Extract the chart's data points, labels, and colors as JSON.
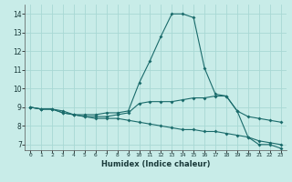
{
  "xlabel": "Humidex (Indice chaleur)",
  "ylabel": "",
  "background_color": "#c8ece8",
  "grid_color": "#a8d8d4",
  "line_color": "#1a6b6b",
  "xlim": [
    -0.5,
    23.5
  ],
  "ylim": [
    6.7,
    14.5
  ],
  "yticks": [
    7,
    8,
    9,
    10,
    11,
    12,
    13,
    14
  ],
  "xticks": [
    0,
    1,
    2,
    3,
    4,
    5,
    6,
    7,
    8,
    9,
    10,
    11,
    12,
    13,
    14,
    15,
    16,
    17,
    18,
    19,
    20,
    21,
    22,
    23
  ],
  "line1_x": [
    0,
    1,
    2,
    3,
    4,
    5,
    6,
    7,
    8,
    9,
    10,
    11,
    12,
    13,
    14,
    15,
    16,
    17,
    18,
    19,
    20,
    21,
    22,
    23
  ],
  "line1_y": [
    9.0,
    8.9,
    8.9,
    8.7,
    8.6,
    8.6,
    8.6,
    8.7,
    8.7,
    8.8,
    10.3,
    11.5,
    12.8,
    14.0,
    14.0,
    13.8,
    11.1,
    9.7,
    9.6,
    8.8,
    7.4,
    7.0,
    7.0,
    6.8
  ],
  "line2_x": [
    0,
    1,
    2,
    3,
    4,
    5,
    6,
    7,
    8,
    9,
    10,
    11,
    12,
    13,
    14,
    15,
    16,
    17,
    18,
    19,
    20,
    21,
    22,
    23
  ],
  "line2_y": [
    9.0,
    8.9,
    8.9,
    8.7,
    8.6,
    8.5,
    8.5,
    8.5,
    8.6,
    8.7,
    9.2,
    9.3,
    9.3,
    9.3,
    9.4,
    9.5,
    9.5,
    9.6,
    9.6,
    8.8,
    8.5,
    8.4,
    8.3,
    8.2
  ],
  "line3_x": [
    0,
    1,
    2,
    3,
    4,
    5,
    6,
    7,
    8,
    9,
    10,
    11,
    12,
    13,
    14,
    15,
    16,
    17,
    18,
    19,
    20,
    21,
    22,
    23
  ],
  "line3_y": [
    9.0,
    8.9,
    8.9,
    8.8,
    8.6,
    8.5,
    8.4,
    8.4,
    8.4,
    8.3,
    8.2,
    8.1,
    8.0,
    7.9,
    7.8,
    7.8,
    7.7,
    7.7,
    7.6,
    7.5,
    7.4,
    7.2,
    7.1,
    7.0
  ]
}
